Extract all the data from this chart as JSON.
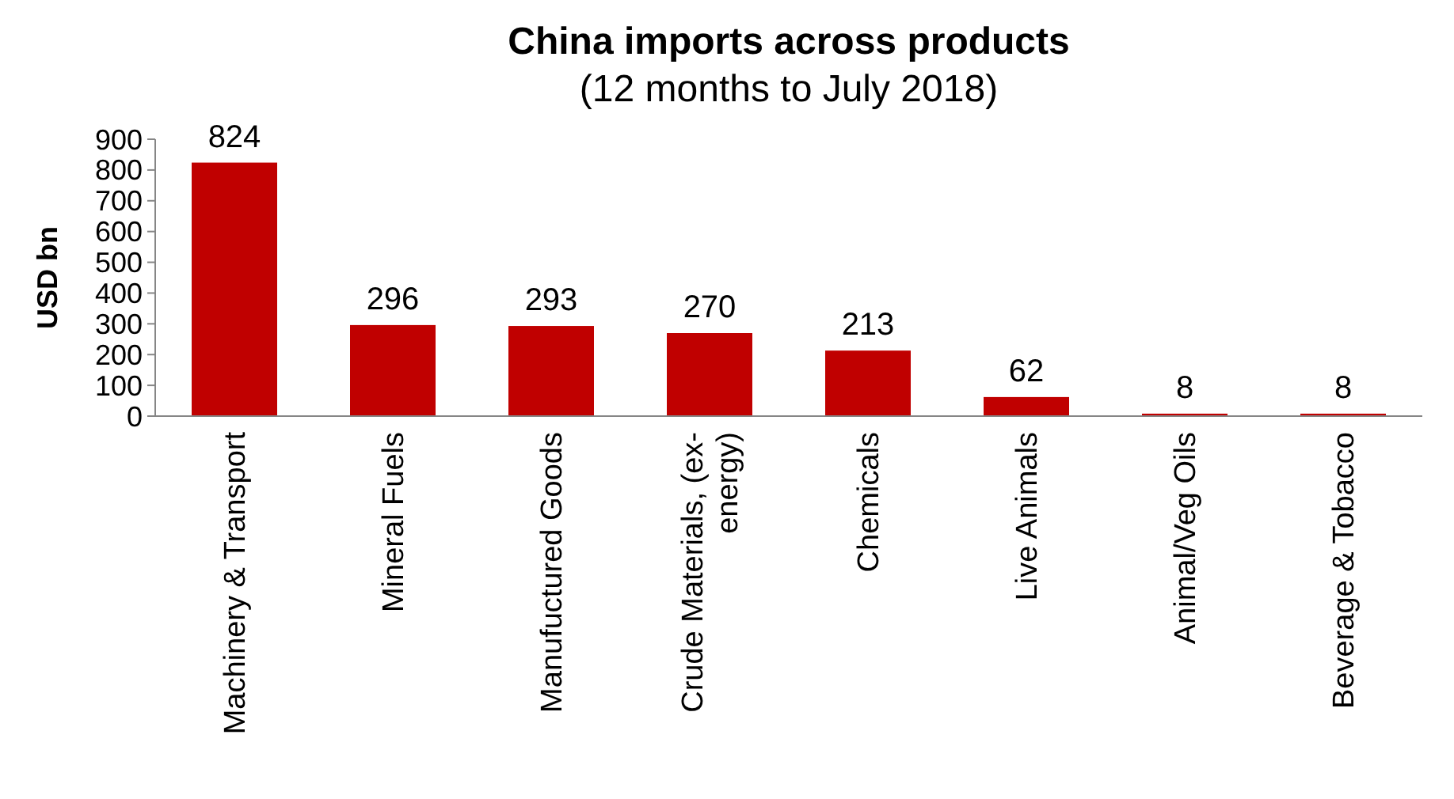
{
  "chart_data": {
    "type": "bar",
    "title": "China imports across products",
    "subtitle": "(12 months to July 2018)",
    "ylabel": "USD bn",
    "categories": [
      "Machinery & Transport",
      "Mineral Fuels",
      "Manufuctured Goods",
      "Crude Materials, (ex-energy)",
      "Chemicals",
      "Live Animals",
      "Animal/Veg Oils",
      "Beverage & Tobacco"
    ],
    "values": [
      824,
      296,
      293,
      270,
      213,
      62,
      8,
      8
    ],
    "color": "#c00000",
    "ylim": [
      0,
      900
    ],
    "yticks": [
      0,
      100,
      200,
      300,
      400,
      500,
      600,
      700,
      800,
      900
    ],
    "grid": false,
    "data_labels": true
  }
}
